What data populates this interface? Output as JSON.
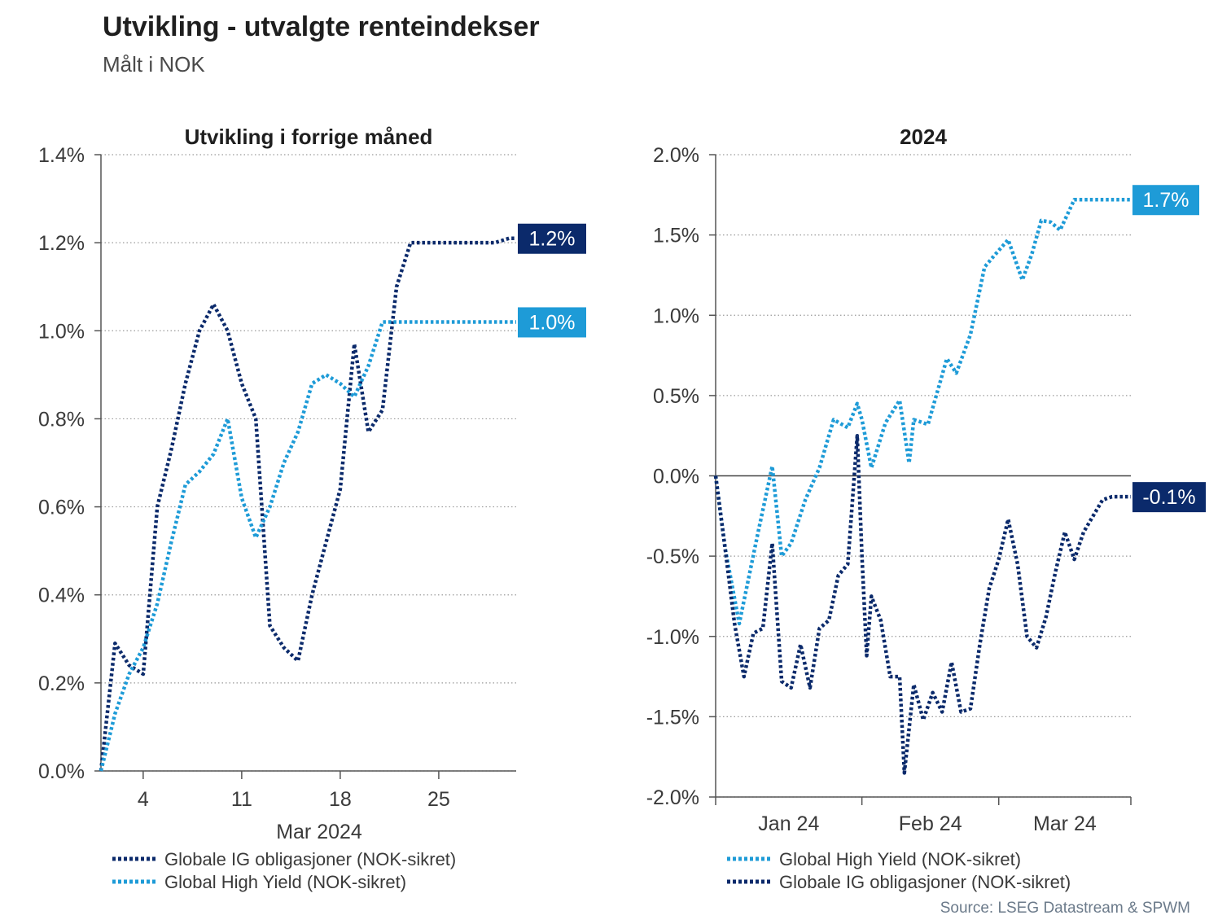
{
  "header": {
    "title": "Utvikling - utvalgte renteindekser",
    "subtitle": "Målt i NOK"
  },
  "source": "Source: LSEG Datastream & SPWM",
  "colors": {
    "ig": "#0b2a6b",
    "hy": "#1e9bd7",
    "grid": "#9a9a9a",
    "axis": "#555555"
  },
  "chart_data": [
    {
      "type": "line",
      "title": "Utvikling i forrige måned",
      "xlabel": "Mar 2024",
      "xlim": [
        1,
        30.5
      ],
      "x_ticks": [
        4,
        11,
        18,
        25
      ],
      "x_tick_labels": [
        "4",
        "11",
        "18",
        "25"
      ],
      "ylim": [
        0.0,
        1.4
      ],
      "y_ticks": [
        0.0,
        0.2,
        0.4,
        0.6,
        0.8,
        1.0,
        1.2,
        1.4
      ],
      "y_tick_labels": [
        "0.0%",
        "0.2%",
        "0.4%",
        "0.6%",
        "0.8%",
        "1.0%",
        "1.2%",
        "1.4%"
      ],
      "legend": [
        "Globale IG obligasjoner (NOK-sikret)",
        "Global High Yield (NOK-sikret)"
      ],
      "series": [
        {
          "name": "Globale IG obligasjoner (NOK-sikret)",
          "color_key": "ig",
          "end_label": "1.2%",
          "x": [
            1,
            2,
            3,
            4,
            5,
            6,
            7,
            8,
            9,
            10,
            11,
            12,
            13,
            14,
            15,
            16,
            17,
            18,
            19,
            20,
            21,
            22,
            23,
            24,
            25,
            26,
            27,
            28,
            29,
            30,
            30.5
          ],
          "values": [
            0.0,
            0.29,
            0.24,
            0.22,
            0.6,
            0.73,
            0.88,
            1.0,
            1.06,
            1.0,
            0.88,
            0.8,
            0.33,
            0.28,
            0.25,
            0.4,
            0.52,
            0.64,
            0.97,
            0.77,
            0.82,
            1.1,
            1.2,
            1.2,
            1.2,
            1.2,
            1.2,
            1.2,
            1.2,
            1.21,
            1.21
          ]
        },
        {
          "name": "Global High Yield (NOK-sikret)",
          "color_key": "hy",
          "end_label": "1.0%",
          "x": [
            1,
            2,
            3,
            4,
            5,
            6,
            7,
            8,
            9,
            10,
            11,
            12,
            13,
            14,
            15,
            16,
            17,
            18,
            19,
            20,
            21,
            22,
            23,
            24,
            25,
            26,
            27,
            28,
            29,
            30,
            30.5
          ],
          "values": [
            0.0,
            0.13,
            0.22,
            0.28,
            0.38,
            0.52,
            0.65,
            0.68,
            0.72,
            0.8,
            0.62,
            0.53,
            0.6,
            0.7,
            0.77,
            0.88,
            0.9,
            0.88,
            0.85,
            0.92,
            1.02,
            1.02,
            1.02,
            1.02,
            1.02,
            1.02,
            1.02,
            1.02,
            1.02,
            1.02,
            1.02
          ]
        }
      ]
    },
    {
      "type": "line",
      "title": "2024",
      "xlim": [
        0,
        88
      ],
      "x_ticks": [
        0,
        31,
        60,
        88
      ],
      "x_tick_labels": [
        "",
        "",
        "",
        ""
      ],
      "x_month_labels": [
        {
          "label": "Jan 24",
          "at": 15.5
        },
        {
          "label": "Feb 24",
          "at": 45.5
        },
        {
          "label": "Mar 24",
          "at": 74
        }
      ],
      "ylim": [
        -2.0,
        2.0
      ],
      "y_ticks": [
        -2.0,
        -1.5,
        -1.0,
        -0.5,
        0.0,
        0.5,
        1.0,
        1.5,
        2.0
      ],
      "y_tick_labels": [
        "-2.0%",
        "-1.5%",
        "-1.0%",
        "-0.5%",
        "0.0%",
        "0.5%",
        "1.0%",
        "1.5%",
        "2.0%"
      ],
      "zero_line": true,
      "legend": [
        "Global High Yield (NOK-sikret)",
        "Globale IG obligasjoner (NOK-sikret)"
      ],
      "series": [
        {
          "name": "Global High Yield (NOK-sikret)",
          "color_key": "hy",
          "end_label": "1.7%",
          "x": [
            0,
            2,
            5,
            9,
            12,
            14,
            16,
            19,
            22,
            25,
            28,
            30,
            31,
            33,
            36,
            39,
            41,
            42,
            45,
            49,
            51,
            54,
            57,
            59,
            62,
            65,
            67,
            69,
            71,
            73,
            76,
            79,
            82,
            84,
            86,
            88
          ],
          "values": [
            0.0,
            -0.45,
            -0.92,
            -0.35,
            0.06,
            -0.5,
            -0.42,
            -0.15,
            0.05,
            0.35,
            0.3,
            0.45,
            0.35,
            0.05,
            0.33,
            0.47,
            0.08,
            0.35,
            0.32,
            0.73,
            0.64,
            0.88,
            1.3,
            1.37,
            1.47,
            1.22,
            1.38,
            1.59,
            1.58,
            1.53,
            1.72,
            1.72,
            1.72,
            1.72,
            1.72,
            1.72
          ]
        },
        {
          "name": "Globale IG obligasjoner (NOK-sikret)",
          "color_key": "ig",
          "end_label": "-0.1%",
          "x": [
            0,
            2,
            4,
            6,
            8,
            10,
            12,
            14,
            16,
            18,
            20,
            22,
            24,
            26,
            28,
            30,
            31,
            32,
            33,
            35,
            37,
            39,
            40,
            42,
            44,
            46,
            48,
            50,
            52,
            54,
            56,
            58,
            60,
            62,
            64,
            66,
            68,
            70,
            72,
            74,
            76,
            78,
            80,
            82,
            84,
            86,
            88
          ],
          "values": [
            0.0,
            -0.45,
            -0.92,
            -1.25,
            -0.98,
            -0.95,
            -0.42,
            -1.28,
            -1.32,
            -1.05,
            -1.32,
            -0.95,
            -0.9,
            -0.62,
            -0.55,
            0.25,
            -0.5,
            -1.12,
            -0.75,
            -0.9,
            -1.25,
            -1.25,
            -1.85,
            -1.3,
            -1.52,
            -1.35,
            -1.47,
            -1.16,
            -1.47,
            -1.45,
            -1.05,
            -0.7,
            -0.52,
            -0.27,
            -0.55,
            -1.0,
            -1.07,
            -0.88,
            -0.6,
            -0.35,
            -0.52,
            -0.35,
            -0.25,
            -0.15,
            -0.13,
            -0.13,
            -0.13
          ]
        }
      ]
    }
  ]
}
